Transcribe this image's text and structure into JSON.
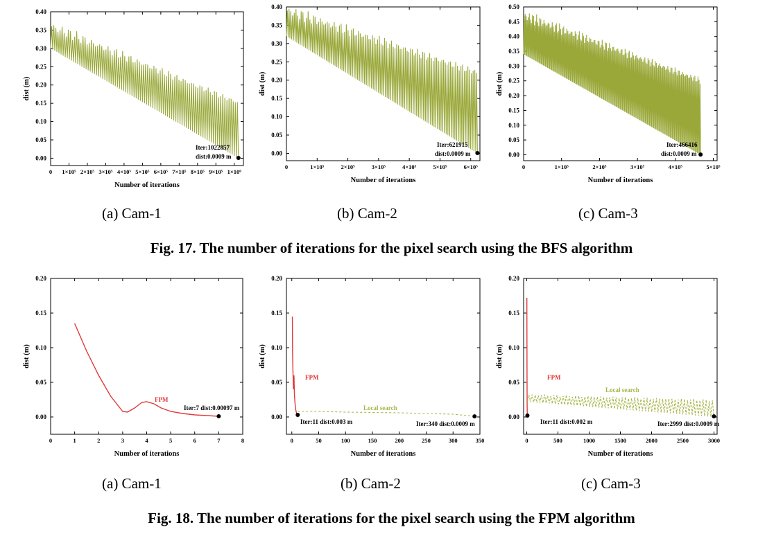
{
  "figures": [
    {
      "caption": "Fig. 17. The number of iterations for the pixel search using the BFS algorithm"
    },
    {
      "caption": "Fig. 18. The number of iterations for the pixel search using the FPM algorithm"
    }
  ],
  "chart_data": [
    {
      "type": "line",
      "subcaption": "(a) Cam-1",
      "xlabel": "Number of iterations",
      "ylabel": "dist (m)",
      "xlim": [
        0,
        1050000
      ],
      "ylim": [
        -0.02,
        0.4
      ],
      "xticks": [
        0,
        100000,
        200000,
        300000,
        400000,
        500000,
        600000,
        700000,
        800000,
        900000,
        1000000
      ],
      "xtick_labels": [
        "0",
        "1×10⁵",
        "2×10⁵",
        "3×10⁵",
        "4×10⁵",
        "5×10⁵",
        "6×10⁵",
        "7×10⁵",
        "8×10⁵",
        "9×10⁵",
        "1×10⁶"
      ],
      "yticks": [
        0,
        0.05,
        0.1,
        0.15,
        0.2,
        0.25,
        0.3,
        0.35,
        0.4
      ],
      "ytick_labels": [
        "0.00",
        "0.05",
        "0.10",
        "0.15",
        "0.20",
        "0.25",
        "0.30",
        "0.35",
        "0.40"
      ],
      "series": [
        {
          "color": "#9aa83a",
          "style": "oscillating",
          "x_range": [
            0,
            1022857
          ],
          "upper": [
            [
              0,
              0.36
            ],
            [
              1022857,
              0.15
            ]
          ],
          "lower": [
            [
              0,
              0.3
            ],
            [
              1022857,
              0.0
            ]
          ],
          "cycles": 90
        }
      ],
      "end_point": {
        "x": 1022857,
        "y": 0.0009
      },
      "annotations": [
        "Iter:1022857",
        "dist:0.0009 m"
      ]
    },
    {
      "type": "line",
      "subcaption": "(b) Cam-2",
      "xlabel": "Number of iterations",
      "ylabel": "dist (m)",
      "xlim": [
        0,
        630000
      ],
      "ylim": [
        -0.02,
        0.4
      ],
      "xticks": [
        0,
        100000,
        200000,
        300000,
        400000,
        500000,
        600000
      ],
      "xtick_labels": [
        "0",
        "1×10⁵",
        "2×10⁵",
        "3×10⁵",
        "4×10⁵",
        "5×10⁵",
        "6×10⁵"
      ],
      "yticks": [
        0,
        0.05,
        0.1,
        0.15,
        0.2,
        0.25,
        0.3,
        0.35,
        0.4
      ],
      "ytick_labels": [
        "0.00",
        "0.05",
        "0.10",
        "0.15",
        "0.20",
        "0.25",
        "0.30",
        "0.35",
        "0.40"
      ],
      "series": [
        {
          "color": "#9aa83a",
          "style": "oscillating",
          "x_range": [
            0,
            621915
          ],
          "upper": [
            [
              0,
              0.39
            ],
            [
              621915,
              0.22
            ]
          ],
          "lower": [
            [
              0,
              0.32
            ],
            [
              621915,
              0.0
            ]
          ],
          "cycles": 110
        }
      ],
      "end_point": {
        "x": 621915,
        "y": 0.0009
      },
      "annotations": [
        "Iter:621915",
        "dist:0.0009 m"
      ]
    },
    {
      "type": "line",
      "subcaption": "(c) Cam-3",
      "xlabel": "Number of iterations",
      "ylabel": "dist (m)",
      "xlim": [
        0,
        510000
      ],
      "ylim": [
        -0.02,
        0.5
      ],
      "xticks": [
        0,
        100000,
        200000,
        300000,
        400000,
        500000
      ],
      "xtick_labels": [
        "0",
        "1×10⁵",
        "2×10⁵",
        "3×10⁵",
        "4×10⁵",
        "5×10⁵"
      ],
      "yticks": [
        0,
        0.05,
        0.1,
        0.15,
        0.2,
        0.25,
        0.3,
        0.35,
        0.4,
        0.45,
        0.5
      ],
      "ytick_labels": [
        "0.00",
        "0.05",
        "0.10",
        "0.15",
        "0.20",
        "0.25",
        "0.30",
        "0.35",
        "0.40",
        "0.45",
        "0.50"
      ],
      "series": [
        {
          "color": "#9aa83a",
          "style": "oscillating",
          "x_range": [
            0,
            466416
          ],
          "upper": [
            [
              0,
              0.47
            ],
            [
              466416,
              0.25
            ]
          ],
          "lower": [
            [
              0,
              0.34
            ],
            [
              466416,
              0.0
            ]
          ],
          "cycles": 170
        }
      ],
      "end_point": {
        "x": 466416,
        "y": 0.0009
      },
      "annotations": [
        "Iter:466416",
        "dist:0.0009 m"
      ]
    },
    {
      "type": "line",
      "subcaption": "(a) Cam-1",
      "xlabel": "Number of iterations",
      "ylabel": "dist (m)",
      "xlim": [
        0,
        8
      ],
      "ylim": [
        -0.025,
        0.2
      ],
      "xticks": [
        0,
        1,
        2,
        3,
        4,
        5,
        6,
        7,
        8
      ],
      "xtick_labels": [
        "0",
        "1",
        "2",
        "3",
        "4",
        "5",
        "6",
        "7",
        "8"
      ],
      "yticks": [
        0,
        0.05,
        0.1,
        0.15,
        0.2
      ],
      "ytick_labels": [
        "0.00",
        "0.05",
        "0.10",
        "0.15",
        "0.20"
      ],
      "series": [
        {
          "name": "FPM",
          "color": "#e03a3a",
          "style": "solid",
          "x": [
            1,
            1.5,
            2,
            2.5,
            3,
            3.2,
            3.5,
            3.8,
            4,
            4.3,
            4.6,
            5,
            5.5,
            6,
            6.5,
            7
          ],
          "y": [
            0.135,
            0.095,
            0.06,
            0.03,
            0.008,
            0.007,
            0.013,
            0.021,
            0.022,
            0.019,
            0.013,
            0.008,
            0.005,
            0.003,
            0.002,
            0.00097
          ]
        }
      ],
      "end_point": {
        "x": 7,
        "y": 0.00097
      },
      "annotations": [
        "FPM",
        "Iter:7 dist:0.00097 m"
      ]
    },
    {
      "type": "line",
      "subcaption": "(b) Cam-2",
      "xlabel": "Number of iterations",
      "ylabel": "dist (m)",
      "xlim": [
        -10,
        350
      ],
      "ylim": [
        -0.025,
        0.2
      ],
      "xticks": [
        0,
        50,
        100,
        150,
        200,
        250,
        300,
        350
      ],
      "xtick_labels": [
        "0",
        "50",
        "100",
        "150",
        "200",
        "250",
        "300",
        "350"
      ],
      "yticks": [
        0,
        0.05,
        0.1,
        0.15,
        0.2
      ],
      "ytick_labels": [
        "0.00",
        "0.05",
        "0.10",
        "0.15",
        "0.20"
      ],
      "series": [
        {
          "name": "FPM",
          "color": "#e03a3a",
          "style": "solid",
          "x": [
            1,
            1.5,
            2,
            3,
            4,
            5,
            6,
            7,
            8,
            9,
            10,
            11
          ],
          "y": [
            0.145,
            0.09,
            0.07,
            0.04,
            0.06,
            0.03,
            0.02,
            0.012,
            0.008,
            0.005,
            0.004,
            0.003
          ]
        },
        {
          "name": "Local search",
          "color": "#a8b64a",
          "style": "dashed",
          "x": [
            11,
            50,
            100,
            150,
            200,
            250,
            300,
            340
          ],
          "y": [
            0.008,
            0.008,
            0.007,
            0.0065,
            0.006,
            0.005,
            0.004,
            0.0009
          ]
        }
      ],
      "end_points": [
        {
          "x": 11,
          "y": 0.003
        },
        {
          "x": 340,
          "y": 0.0009
        }
      ],
      "annotations": [
        "FPM",
        "Local search",
        "Iter:11 dist:0.003 m",
        "Iter:340 dist:0.0009 m"
      ]
    },
    {
      "type": "line",
      "subcaption": "(c) Cam-3",
      "xlabel": "Number of iterations",
      "ylabel": "dist (m)",
      "xlim": [
        -50,
        3050
      ],
      "ylim": [
        -0.025,
        0.2
      ],
      "xticks": [
        0,
        500,
        1000,
        1500,
        2000,
        2500,
        3000
      ],
      "xtick_labels": [
        "0",
        "500",
        "1000",
        "1500",
        "2000",
        "2500",
        "3000"
      ],
      "yticks": [
        0,
        0.05,
        0.1,
        0.15,
        0.2
      ],
      "ytick_labels": [
        "0.00",
        "0.05",
        "0.10",
        "0.15",
        "0.20"
      ],
      "series": [
        {
          "name": "FPM",
          "color": "#e03a3a",
          "style": "solid",
          "x": [
            2,
            4,
            6,
            8,
            11
          ],
          "y": [
            0.172,
            0.08,
            0.02,
            0.005,
            0.002
          ]
        },
        {
          "name": "Local search",
          "color": "#a8b64a",
          "style": "oscillating-dashed",
          "x_range": [
            11,
            2999
          ],
          "upper": [
            [
              11,
              0.032
            ],
            [
              2999,
              0.024
            ]
          ],
          "lower": [
            [
              11,
              0.022
            ],
            [
              2999,
              0.0
            ]
          ],
          "cycles": 60
        }
      ],
      "end_points": [
        {
          "x": 11,
          "y": 0.002
        },
        {
          "x": 2999,
          "y": 0.0009
        }
      ],
      "annotations": [
        "FPM",
        "Local search",
        "Iter:11 dist:0.002 m",
        "Iter:2999 dist:0.0009 m"
      ]
    }
  ]
}
